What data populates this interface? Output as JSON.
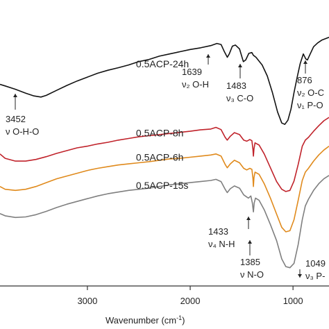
{
  "chart_data": {
    "type": "line",
    "xlabel": "Wavenumber (cm",
    "xlabel_sup": "-1",
    "xlabel_close": ")",
    "x_reversed": true,
    "xlim": [
      3850,
      650
    ],
    "ylim": [
      0,
      1
    ],
    "x_ticks": [
      {
        "value": 3000,
        "label": "3000"
      },
      {
        "value": 2000,
        "label": "2000"
      },
      {
        "value": 1000,
        "label": "1000"
      }
    ],
    "grid": false,
    "series": [
      {
        "name": "0.5ACP-24h",
        "color": "#111111",
        "label_at": 3000,
        "points": [
          [
            3850,
            0.73
          ],
          [
            3800,
            0.724
          ],
          [
            3700,
            0.712
          ],
          [
            3600,
            0.698
          ],
          [
            3520,
            0.688
          ],
          [
            3452,
            0.684
          ],
          [
            3400,
            0.69
          ],
          [
            3300,
            0.708
          ],
          [
            3200,
            0.726
          ],
          [
            3100,
            0.742
          ],
          [
            3000,
            0.756
          ],
          [
            2900,
            0.77
          ],
          [
            2800,
            0.781
          ],
          [
            2700,
            0.79
          ],
          [
            2600,
            0.8
          ],
          [
            2500,
            0.812
          ],
          [
            2400,
            0.82
          ],
          [
            2300,
            0.832
          ],
          [
            2200,
            0.84
          ],
          [
            2100,
            0.848
          ],
          [
            2000,
            0.856
          ],
          [
            1900,
            0.862
          ],
          [
            1800,
            0.87
          ],
          [
            1740,
            0.878
          ],
          [
            1700,
            0.874
          ],
          [
            1670,
            0.85
          ],
          [
            1639,
            0.828
          ],
          [
            1620,
            0.84
          ],
          [
            1590,
            0.868
          ],
          [
            1560,
            0.872
          ],
          [
            1520,
            0.858
          ],
          [
            1483,
            0.812
          ],
          [
            1460,
            0.818
          ],
          [
            1430,
            0.842
          ],
          [
            1400,
            0.845
          ],
          [
            1385,
            0.835
          ],
          [
            1360,
            0.828
          ],
          [
            1300,
            0.8
          ],
          [
            1250,
            0.76
          ],
          [
            1200,
            0.7
          ],
          [
            1150,
            0.63
          ],
          [
            1110,
            0.59
          ],
          [
            1080,
            0.585
          ],
          [
            1050,
            0.6
          ],
          [
            1020,
            0.64
          ],
          [
            990,
            0.7
          ],
          [
            960,
            0.755
          ],
          [
            930,
            0.805
          ],
          [
            900,
            0.84
          ],
          [
            876,
            0.822
          ],
          [
            860,
            0.818
          ],
          [
            830,
            0.842
          ],
          [
            800,
            0.866
          ],
          [
            760,
            0.88
          ],
          [
            720,
            0.89
          ],
          [
            650,
            0.9
          ]
        ]
      },
      {
        "name": "0.5ACP-8h",
        "color": "#c0222a",
        "label_at": 3000,
        "points": [
          [
            3850,
            0.478
          ],
          [
            3800,
            0.462
          ],
          [
            3700,
            0.452
          ],
          [
            3600,
            0.452
          ],
          [
            3500,
            0.458
          ],
          [
            3400,
            0.468
          ],
          [
            3300,
            0.48
          ],
          [
            3200,
            0.49
          ],
          [
            3100,
            0.5
          ],
          [
            3000,
            0.506
          ],
          [
            2900,
            0.514
          ],
          [
            2800,
            0.52
          ],
          [
            2700,
            0.528
          ],
          [
            2600,
            0.534
          ],
          [
            2500,
            0.54
          ],
          [
            2400,
            0.544
          ],
          [
            2300,
            0.548
          ],
          [
            2200,
            0.552
          ],
          [
            2100,
            0.556
          ],
          [
            2000,
            0.56
          ],
          [
            1900,
            0.565
          ],
          [
            1800,
            0.568
          ],
          [
            1750,
            0.574
          ],
          [
            1700,
            0.566
          ],
          [
            1660,
            0.538
          ],
          [
            1640,
            0.528
          ],
          [
            1610,
            0.542
          ],
          [
            1570,
            0.555
          ],
          [
            1520,
            0.548
          ],
          [
            1480,
            0.528
          ],
          [
            1450,
            0.524
          ],
          [
            1420,
            0.53
          ],
          [
            1400,
            0.526
          ],
          [
            1390,
            0.495
          ],
          [
            1385,
            0.47
          ],
          [
            1380,
            0.496
          ],
          [
            1370,
            0.518
          ],
          [
            1330,
            0.51
          ],
          [
            1280,
            0.478
          ],
          [
            1220,
            0.428
          ],
          [
            1160,
            0.378
          ],
          [
            1110,
            0.35
          ],
          [
            1070,
            0.342
          ],
          [
            1030,
            0.346
          ],
          [
            990,
            0.38
          ],
          [
            950,
            0.44
          ],
          [
            910,
            0.506
          ],
          [
            880,
            0.528
          ],
          [
            850,
            0.538
          ],
          [
            800,
            0.56
          ],
          [
            750,
            0.58
          ],
          [
            700,
            0.598
          ],
          [
            650,
            0.61
          ]
        ]
      },
      {
        "name": "0.5ACP-6h",
        "color": "#e08a1c",
        "label_at": 3000,
        "points": [
          [
            3850,
            0.36
          ],
          [
            3800,
            0.35
          ],
          [
            3700,
            0.346
          ],
          [
            3600,
            0.35
          ],
          [
            3500,
            0.36
          ],
          [
            3400,
            0.374
          ],
          [
            3300,
            0.388
          ],
          [
            3200,
            0.398
          ],
          [
            3100,
            0.408
          ],
          [
            3000,
            0.418
          ],
          [
            2900,
            0.426
          ],
          [
            2800,
            0.432
          ],
          [
            2700,
            0.438
          ],
          [
            2600,
            0.442
          ],
          [
            2500,
            0.446
          ],
          [
            2400,
            0.45
          ],
          [
            2300,
            0.455
          ],
          [
            2200,
            0.46
          ],
          [
            2100,
            0.462
          ],
          [
            2000,
            0.466
          ],
          [
            1900,
            0.47
          ],
          [
            1800,
            0.474
          ],
          [
            1750,
            0.478
          ],
          [
            1700,
            0.47
          ],
          [
            1660,
            0.44
          ],
          [
            1640,
            0.428
          ],
          [
            1610,
            0.442
          ],
          [
            1570,
            0.455
          ],
          [
            1520,
            0.446
          ],
          [
            1480,
            0.426
          ],
          [
            1450,
            0.42
          ],
          [
            1420,
            0.426
          ],
          [
            1400,
            0.422
          ],
          [
            1390,
            0.39
          ],
          [
            1385,
            0.36
          ],
          [
            1380,
            0.392
          ],
          [
            1370,
            0.412
          ],
          [
            1330,
            0.404
          ],
          [
            1280,
            0.37
          ],
          [
            1220,
            0.318
          ],
          [
            1160,
            0.26
          ],
          [
            1110,
            0.212
          ],
          [
            1070,
            0.196
          ],
          [
            1030,
            0.2
          ],
          [
            990,
            0.24
          ],
          [
            950,
            0.31
          ],
          [
            910,
            0.382
          ],
          [
            880,
            0.412
          ],
          [
            850,
            0.426
          ],
          [
            800,
            0.452
          ],
          [
            750,
            0.474
          ],
          [
            700,
            0.492
          ],
          [
            650,
            0.506
          ]
        ]
      },
      {
        "name": "0.5ACP-15s",
        "color": "#7f7f7f",
        "label_at": 3000,
        "points": [
          [
            3850,
            0.262
          ],
          [
            3800,
            0.254
          ],
          [
            3700,
            0.248
          ],
          [
            3600,
            0.25
          ],
          [
            3500,
            0.258
          ],
          [
            3400,
            0.27
          ],
          [
            3300,
            0.284
          ],
          [
            3200,
            0.296
          ],
          [
            3100,
            0.306
          ],
          [
            3000,
            0.316
          ],
          [
            2900,
            0.326
          ],
          [
            2800,
            0.334
          ],
          [
            2700,
            0.34
          ],
          [
            2600,
            0.346
          ],
          [
            2500,
            0.35
          ],
          [
            2400,
            0.354
          ],
          [
            2300,
            0.36
          ],
          [
            2200,
            0.366
          ],
          [
            2100,
            0.37
          ],
          [
            2000,
            0.374
          ],
          [
            1900,
            0.378
          ],
          [
            1800,
            0.382
          ],
          [
            1750,
            0.386
          ],
          [
            1700,
            0.378
          ],
          [
            1660,
            0.35
          ],
          [
            1640,
            0.338
          ],
          [
            1610,
            0.352
          ],
          [
            1570,
            0.362
          ],
          [
            1520,
            0.354
          ],
          [
            1480,
            0.33
          ],
          [
            1450,
            0.322
          ],
          [
            1433,
            0.318
          ],
          [
            1410,
            0.326
          ],
          [
            1395,
            0.3
          ],
          [
            1385,
            0.268
          ],
          [
            1378,
            0.3
          ],
          [
            1365,
            0.318
          ],
          [
            1330,
            0.31
          ],
          [
            1280,
            0.276
          ],
          [
            1220,
            0.222
          ],
          [
            1160,
            0.164
          ],
          [
            1110,
            0.098
          ],
          [
            1070,
            0.07
          ],
          [
            1030,
            0.066
          ],
          [
            990,
            0.082
          ],
          [
            950,
            0.15
          ],
          [
            910,
            0.24
          ],
          [
            880,
            0.29
          ],
          [
            850,
            0.314
          ],
          [
            800,
            0.346
          ],
          [
            750,
            0.37
          ],
          [
            700,
            0.388
          ],
          [
            650,
            0.4
          ]
        ]
      }
    ],
    "annotations": [
      {
        "id": "oho-3452",
        "lines": [
          "3452",
          "ν O-H-O"
        ],
        "x": 3452,
        "arrow": true
      },
      {
        "id": "oh-1639",
        "lines": [
          "1639",
          "ν₂ O-H"
        ],
        "x": 1639,
        "arrow": true
      },
      {
        "id": "co-1483",
        "lines": [
          "1483",
          "ν₃ C-O"
        ],
        "x": 1483,
        "arrow": true
      },
      {
        "id": "po-876",
        "lines": [
          "876",
          "ν₂ O-C",
          "ν₁ P-O"
        ],
        "x": 876,
        "arrow": true
      },
      {
        "id": "nh-1433",
        "lines": [
          "1433",
          "ν₄ N-H"
        ],
        "x": 1433,
        "arrow": true
      },
      {
        "id": "no-1385",
        "lines": [
          "1385",
          "ν N-O"
        ],
        "x": 1385,
        "arrow": true
      },
      {
        "id": "p-1049",
        "lines": [
          "1049",
          "ν₃ P-"
        ],
        "x": 1049,
        "arrow": true
      }
    ]
  }
}
